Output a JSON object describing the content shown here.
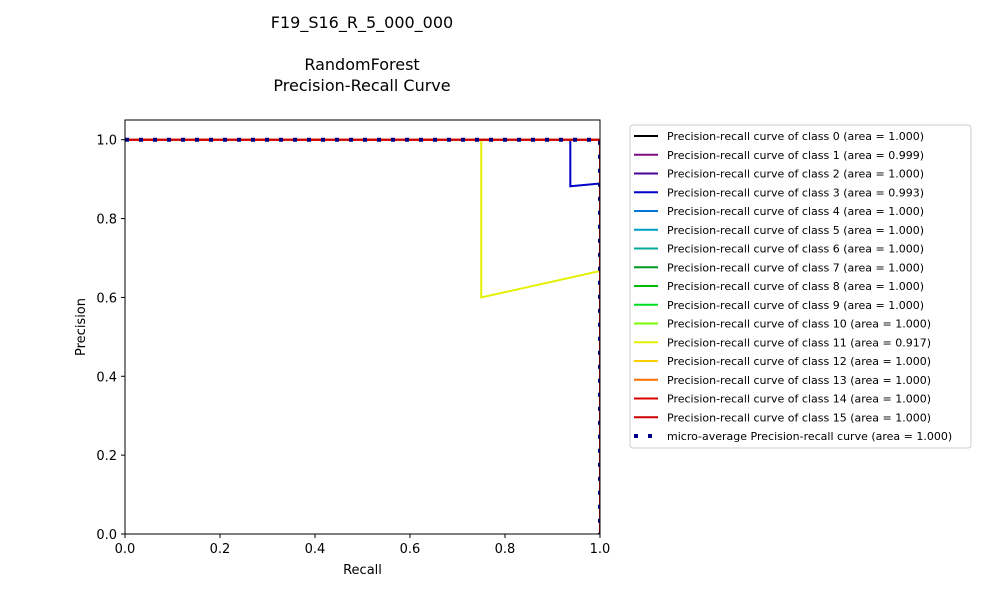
{
  "chart_data": {
    "type": "line",
    "title_lines": [
      "F19_S16_R_5_000_000",
      "",
      "RandomForest",
      "Precision-Recall Curve"
    ],
    "xlabel": "Recall",
    "ylabel": "Precision",
    "xlim": [
      0,
      1
    ],
    "ylim": [
      0,
      1.05
    ],
    "xticks": [
      0.0,
      0.2,
      0.4,
      0.6,
      0.8,
      1.0
    ],
    "yticks": [
      0.0,
      0.2,
      0.4,
      0.6,
      0.8,
      1.0
    ],
    "xtick_labels": [
      "0.0",
      "0.2",
      "0.4",
      "0.6",
      "0.8",
      "1.0"
    ],
    "ytick_labels": [
      "0.0",
      "0.2",
      "0.4",
      "0.6",
      "0.8",
      "1.0"
    ],
    "grid": false,
    "legend_placement": "outside-right",
    "series": [
      {
        "name": "Precision-recall curve of class 0 (area = 1.000)",
        "color": "#000000",
        "style": "solid",
        "x": [
          0,
          1,
          1
        ],
        "y": [
          1,
          1,
          0
        ]
      },
      {
        "name": "Precision-recall curve of class 1 (area = 0.999)",
        "color": "#7f0d86",
        "style": "solid",
        "x": [
          0,
          1,
          1
        ],
        "y": [
          1,
          1,
          0
        ]
      },
      {
        "name": "Precision-recall curve of class 2 (area = 1.000)",
        "color": "#4c0095",
        "style": "solid",
        "x": [
          0,
          1,
          1
        ],
        "y": [
          1,
          1,
          0
        ]
      },
      {
        "name": "Precision-recall curve of class 3 (area = 0.993)",
        "color": "#0000c8",
        "style": "solid",
        "x": [
          0,
          0.9375,
          0.9375,
          1,
          1
        ],
        "y": [
          1,
          1,
          0.882,
          0.889,
          0
        ]
      },
      {
        "name": "Precision-recall curve of class 4 (area = 1.000)",
        "color": "#0077dd",
        "style": "solid",
        "x": [
          0,
          1,
          1
        ],
        "y": [
          1,
          1,
          0
        ]
      },
      {
        "name": "Precision-recall curve of class 5 (area = 1.000)",
        "color": "#00a0c5",
        "style": "solid",
        "x": [
          0,
          1,
          1
        ],
        "y": [
          1,
          1,
          0
        ]
      },
      {
        "name": "Precision-recall curve of class 6 (area = 1.000)",
        "color": "#00aa9a",
        "style": "solid",
        "x": [
          0,
          1,
          1
        ],
        "y": [
          1,
          1,
          0
        ]
      },
      {
        "name": "Precision-recall curve of class 7 (area = 1.000)",
        "color": "#009a22",
        "style": "solid",
        "x": [
          0,
          1,
          1
        ],
        "y": [
          1,
          1,
          0
        ]
      },
      {
        "name": "Precision-recall curve of class 8 (area = 1.000)",
        "color": "#00bb00",
        "style": "solid",
        "x": [
          0,
          1,
          1
        ],
        "y": [
          1,
          1,
          0
        ]
      },
      {
        "name": "Precision-recall curve of class 9 (area = 1.000)",
        "color": "#00dd22",
        "style": "solid",
        "x": [
          0,
          1,
          1
        ],
        "y": [
          1,
          1,
          0
        ]
      },
      {
        "name": "Precision-recall curve of class 10 (area = 1.000)",
        "color": "#77ff00",
        "style": "solid",
        "x": [
          0,
          1,
          1
        ],
        "y": [
          1,
          1,
          0
        ]
      },
      {
        "name": "Precision-recall curve of class 11 (area = 0.917)",
        "color": "#e5f000",
        "style": "solid",
        "x": [
          0,
          0.75,
          0.75,
          1,
          1
        ],
        "y": [
          1,
          1,
          0.6,
          0.667,
          0
        ]
      },
      {
        "name": "Precision-recall curve of class 12 (area = 1.000)",
        "color": "#ffcc00",
        "style": "solid",
        "x": [
          0,
          1,
          1
        ],
        "y": [
          1,
          1,
          0
        ]
      },
      {
        "name": "Precision-recall curve of class 13 (area = 1.000)",
        "color": "#ff6e00",
        "style": "solid",
        "x": [
          0,
          1,
          1
        ],
        "y": [
          1,
          1,
          0
        ]
      },
      {
        "name": "Precision-recall curve of class 14 (area = 1.000)",
        "color": "#dd0000",
        "style": "solid",
        "x": [
          0,
          1,
          1
        ],
        "y": [
          1,
          1,
          0
        ]
      },
      {
        "name": "Precision-recall curve of class 15 (area = 1.000)",
        "color": "#cc0000",
        "style": "solid",
        "x": [
          0,
          1,
          1
        ],
        "y": [
          1,
          1,
          0
        ]
      },
      {
        "name": "micro-average Precision-recall curve (area = 1.000)",
        "color": "#000080",
        "style": "dotted",
        "x": [
          0,
          1,
          1
        ],
        "y": [
          1,
          1,
          0
        ]
      }
    ]
  }
}
